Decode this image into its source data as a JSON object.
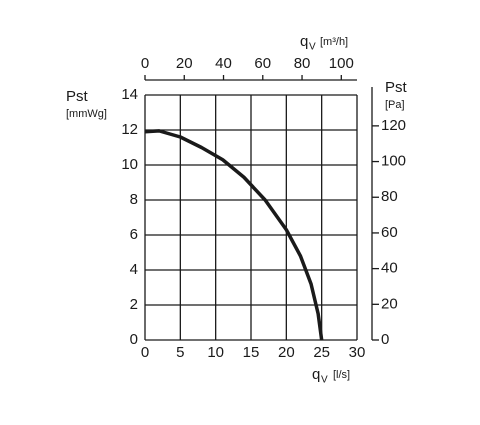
{
  "chart_data": {
    "type": "line",
    "x": [
      0,
      2,
      5,
      8,
      11,
      14,
      17,
      20,
      22,
      23.5,
      24.5,
      25
    ],
    "series": [
      {
        "color": "#1a1a1a",
        "values": [
          11.9,
          11.95,
          11.6,
          11.0,
          10.3,
          9.3,
          8.0,
          6.3,
          4.8,
          3.2,
          1.5,
          0
        ]
      }
    ],
    "xlim": [
      0,
      30
    ],
    "xticks": [
      0,
      5,
      10,
      15,
      20,
      25,
      30
    ],
    "ylim": [
      0,
      14
    ],
    "yticks": [
      0,
      2,
      4,
      6,
      8,
      10,
      12,
      14
    ],
    "x2lim": [
      0,
      108
    ],
    "x2ticks": [
      0,
      20,
      40,
      60,
      80,
      100
    ],
    "y2lim": [
      0,
      137.3
    ],
    "y2ticks": [
      0,
      20,
      40,
      60,
      80,
      100,
      120
    ],
    "grid": true,
    "xlabel": {
      "symbol": "q",
      "subscript": "V",
      "unit": "[l/s]"
    },
    "x2label": {
      "symbol": "q",
      "subscript": "V",
      "unit": "[m³/h]"
    },
    "ylabel": {
      "symbol": "Pst",
      "unit": "[mmWg]"
    },
    "y2label": {
      "symbol": "Pst",
      "unit": "[Pa]"
    }
  }
}
